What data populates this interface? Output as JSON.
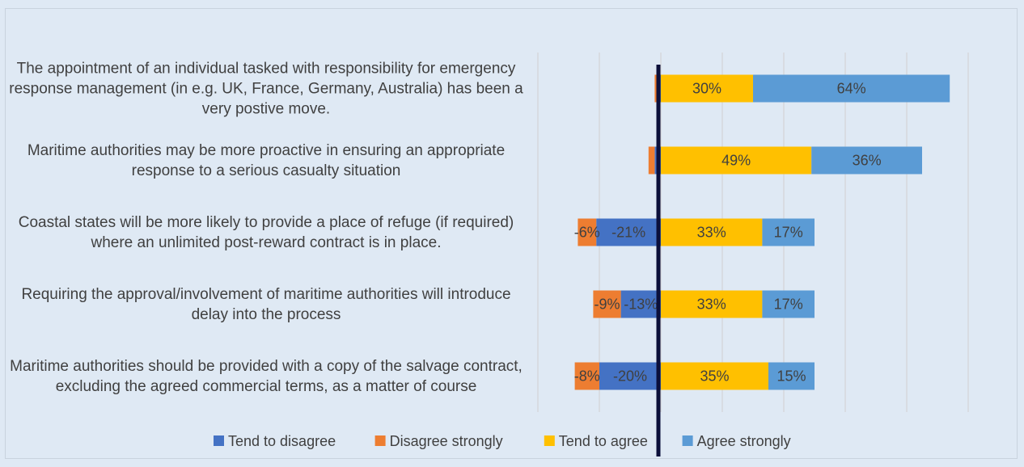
{
  "chart_data": {
    "type": "diverging_bar",
    "categories": [
      "The appointment of an individual tasked with responsibility for emergency response management (in e.g. UK, France, Germany, Australia) has been a very postive move.",
      "Maritime authorities may be more proactive in ensuring an appropriate response to a serious casualty situation",
      "Coastal states will be more likely to provide a place of refuge (if required) where an unlimited post-reward contract is in place.",
      "Requiring the approval/involvement of maritime authorities will introduce delay into the process",
      "Maritime authorities should be provided with a copy of the salvage contract, excluding the agreed commercial terms, as a matter of course"
    ],
    "series": [
      {
        "name": "Tend to disagree",
        "color": "#4472c4",
        "values": [
          -1,
          -2,
          -21,
          -13,
          -20
        ],
        "value_labels": [
          null,
          null,
          "-21%",
          "-13%",
          "-20%"
        ]
      },
      {
        "name": "Disagree strongly",
        "color": "#ed7d31",
        "values": [
          -1,
          -2,
          -6,
          -9,
          -8
        ],
        "value_labels": [
          null,
          null,
          "-6%",
          "-9%",
          "-8%"
        ]
      },
      {
        "name": "Tend to agree",
        "color": "#ffc000",
        "values": [
          30,
          49,
          33,
          33,
          35
        ],
        "value_labels": [
          "30%",
          "49%",
          "33%",
          "33%",
          "35%"
        ]
      },
      {
        "name": "Agree strongly",
        "color": "#5b9bd5",
        "values": [
          64,
          36,
          17,
          17,
          15
        ],
        "value_labels": [
          "64%",
          "36%",
          "17%",
          "17%",
          "15%"
        ]
      }
    ],
    "xlim": [
      -40,
      100
    ],
    "xticks": [
      -40,
      -20,
      0,
      20,
      40,
      60,
      80,
      100
    ],
    "grid": true
  }
}
